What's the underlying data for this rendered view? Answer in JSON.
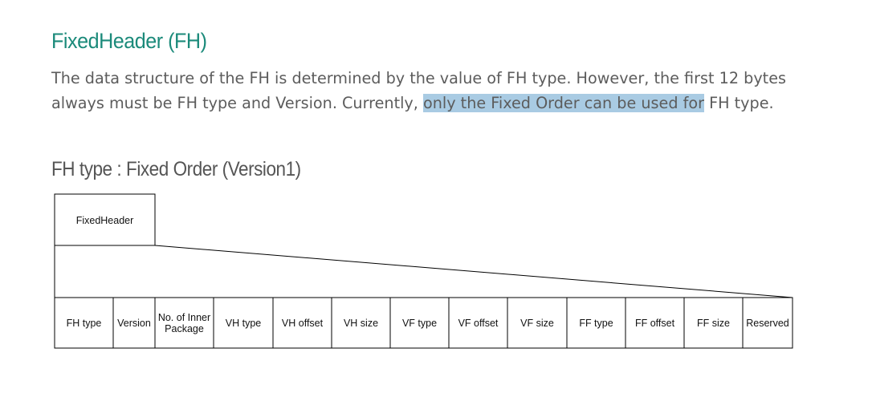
{
  "section": {
    "title": "FixedHeader (FH)",
    "intro_before": "The data structure of the FH is determined by the value of FH type. However, the first 12 bytes always must be FH type and Version. Currently, ",
    "intro_highlight": "only the Fixed Order can be used for",
    "intro_after": " FH type."
  },
  "subsection": {
    "title": "FH type : Fixed Order (Version1)"
  },
  "diagram": {
    "header_box_label": "FixedHeader",
    "fields": [
      {
        "lines": [
          "FH type"
        ]
      },
      {
        "lines": [
          "Version"
        ]
      },
      {
        "lines": [
          "No. of Inner",
          "Package"
        ]
      },
      {
        "lines": [
          "VH type"
        ]
      },
      {
        "lines": [
          "VH offset"
        ]
      },
      {
        "lines": [
          "VH size"
        ]
      },
      {
        "lines": [
          "VF type"
        ]
      },
      {
        "lines": [
          "VF offset"
        ]
      },
      {
        "lines": [
          "VF size"
        ]
      },
      {
        "lines": [
          "FF type"
        ]
      },
      {
        "lines": [
          "FF offset"
        ]
      },
      {
        "lines": [
          "FF size"
        ]
      },
      {
        "lines": [
          "Reserved"
        ]
      }
    ]
  },
  "colors": {
    "title": "#1b8a7a",
    "body_text": "#5c5c5c",
    "highlight": "#a9cbe3",
    "line": "#000000"
  }
}
